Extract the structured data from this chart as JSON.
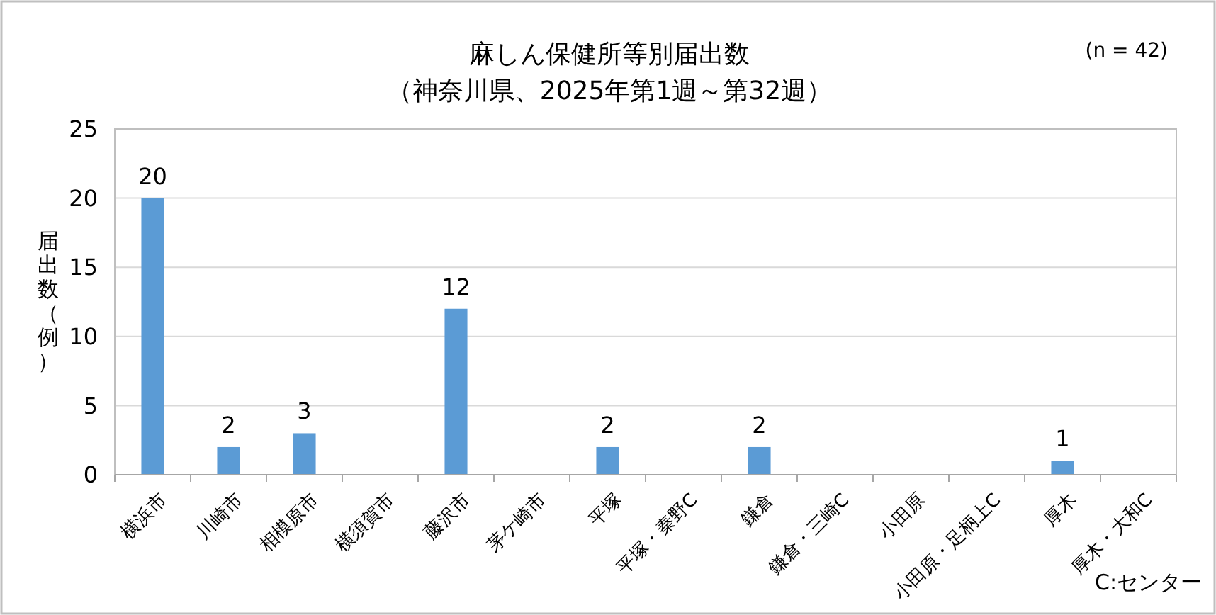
{
  "chart_data": {
    "type": "bar",
    "title": "麻しん保健所等別届出数",
    "subtitle": "（神奈川県、2025年第1週～第32週）",
    "ylabel": "届出数（例）",
    "annotations": [
      "(n = 42)",
      "C:センター"
    ],
    "categories": [
      "横浜市",
      "川崎市",
      "相模原市",
      "横須賀市",
      "藤沢市",
      "茅ケ崎市",
      "平塚",
      "平塚・秦野C",
      "鎌倉",
      "鎌倉・三崎C",
      "小田原",
      "小田原・足柄上C",
      "厚木",
      "厚木・大和C"
    ],
    "values": [
      20,
      2,
      3,
      0,
      12,
      0,
      2,
      0,
      2,
      0,
      0,
      0,
      1,
      0
    ],
    "value_labels": [
      "20",
      "2",
      "3",
      null,
      "12",
      null,
      "2",
      null,
      "2",
      null,
      null,
      null,
      "1",
      null
    ],
    "color": "#5b9bd5",
    "ylim": [
      0,
      25
    ],
    "yticks": [
      0,
      5,
      10,
      15,
      20,
      25
    ],
    "grid": "y"
  }
}
